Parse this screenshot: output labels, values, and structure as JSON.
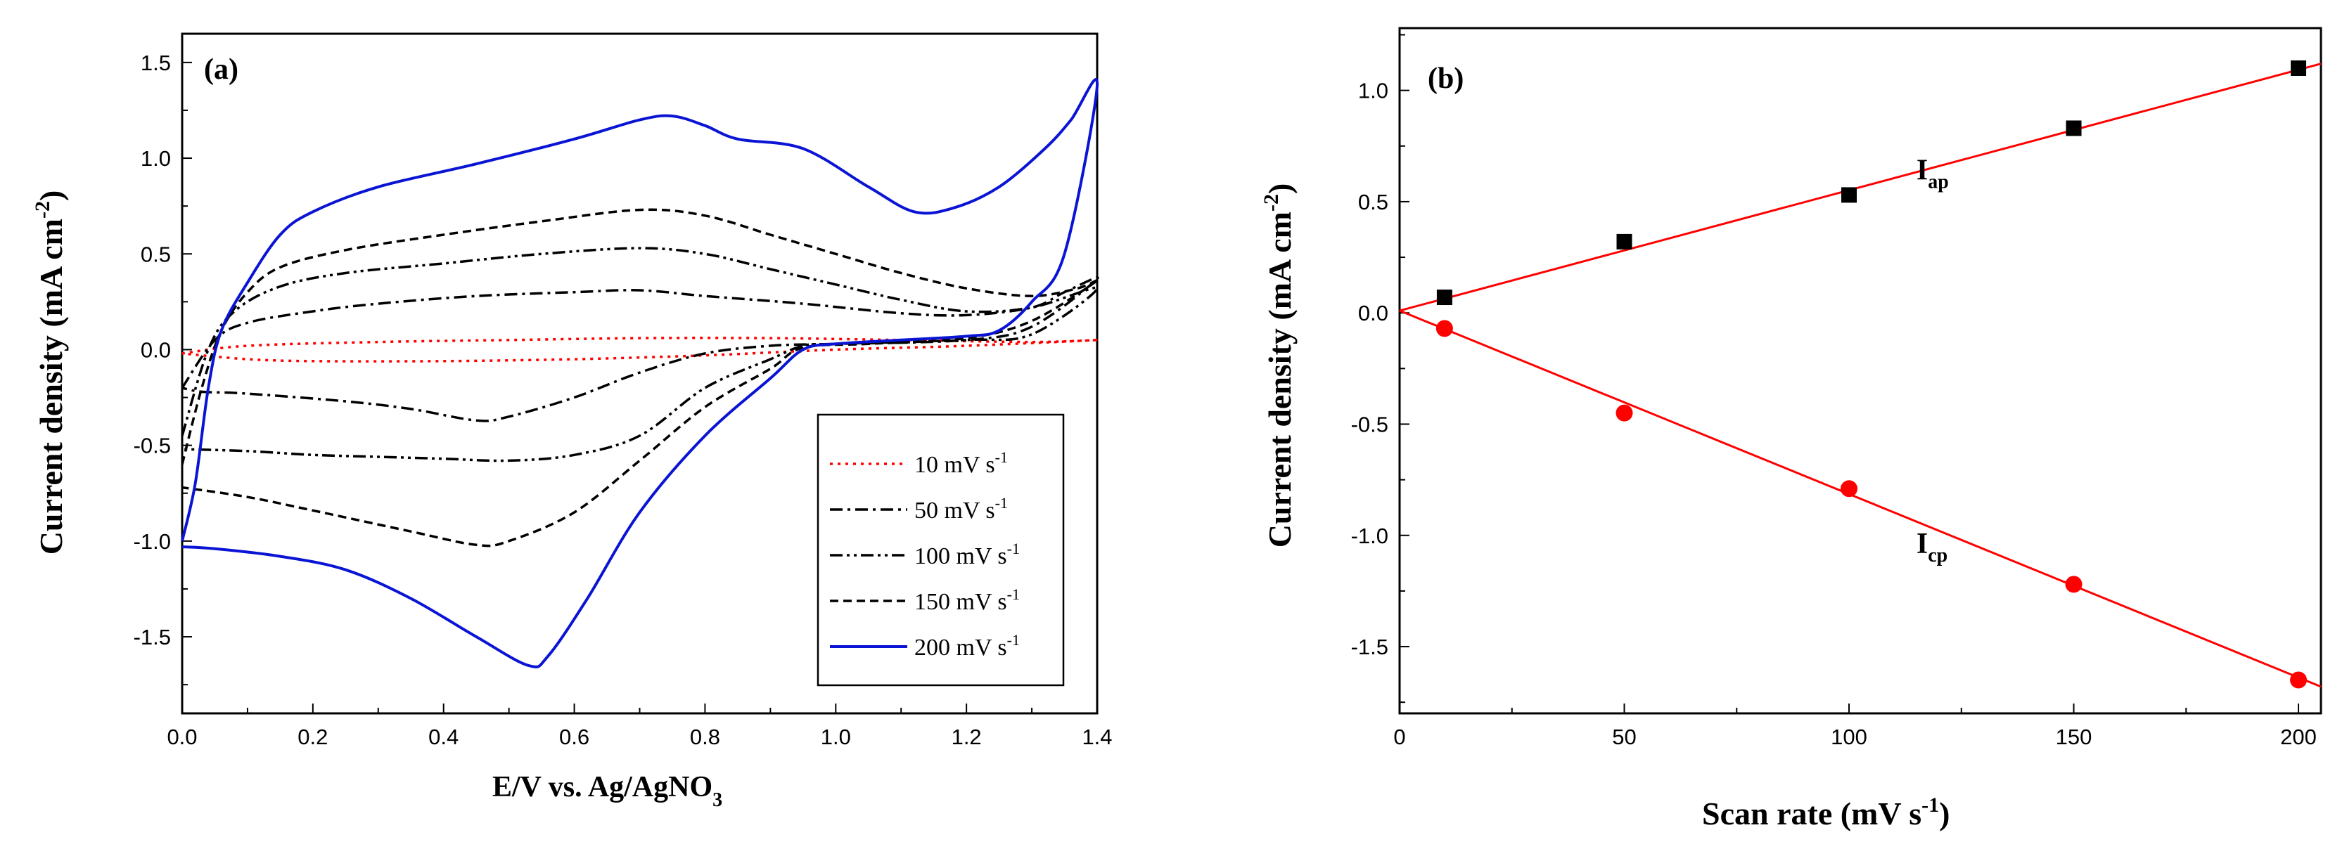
{
  "chart_data": [
    {
      "type": "line",
      "panel_label": "(a)",
      "xlabel": "E/V vs. Ag/AgNO",
      "xlabel_sub": "3",
      "ylabel": "Current density (mA cm",
      "ylabel_sup": "-2",
      "ylabel_close": ")",
      "xlim": [
        0,
        1.4
      ],
      "ylim": [
        -1.9,
        1.65
      ],
      "xticks": [
        "0.0",
        "0.2",
        "0.4",
        "0.6",
        "0.8",
        "1.0",
        "1.2",
        "1.4"
      ],
      "yticks": [
        "-1.5",
        "-1.0",
        "-0.5",
        "0.0",
        "0.5",
        "1.0",
        "1.5"
      ],
      "legend": {
        "position": "bottom-right",
        "unit": "mV s",
        "unit_sup": "-1",
        "entries": [
          "10",
          "50",
          "100",
          "150",
          "200"
        ]
      },
      "series": [
        {
          "name": "10 mV s-1",
          "color": "#ff0000",
          "style": "dotted",
          "anodic": [
            [
              0.0,
              -0.02
            ],
            [
              0.1,
              0.02
            ],
            [
              0.3,
              0.04
            ],
            [
              0.5,
              0.05
            ],
            [
              0.7,
              0.06
            ],
            [
              0.9,
              0.06
            ],
            [
              1.1,
              0.05
            ],
            [
              1.3,
              0.04
            ],
            [
              1.4,
              0.05
            ]
          ],
          "cathodic": [
            [
              1.4,
              0.04
            ],
            [
              1.2,
              0.02
            ],
            [
              1.0,
              0.0
            ],
            [
              0.8,
              -0.03
            ],
            [
              0.6,
              -0.05
            ],
            [
              0.4,
              -0.06
            ],
            [
              0.2,
              -0.06
            ],
            [
              0.1,
              -0.05
            ],
            [
              0.0,
              -0.02
            ]
          ]
        },
        {
          "name": "50 mV s-1",
          "color": "#000000",
          "style": "dashdot",
          "anodic": [
            [
              0.0,
              -0.2
            ],
            [
              0.05,
              0.05
            ],
            [
              0.1,
              0.14
            ],
            [
              0.2,
              0.2
            ],
            [
              0.3,
              0.24
            ],
            [
              0.45,
              0.28
            ],
            [
              0.6,
              0.3
            ],
            [
              0.7,
              0.31
            ],
            [
              0.8,
              0.28
            ],
            [
              0.95,
              0.24
            ],
            [
              1.1,
              0.19
            ],
            [
              1.2,
              0.18
            ],
            [
              1.3,
              0.22
            ],
            [
              1.35,
              0.3
            ],
            [
              1.4,
              0.37
            ]
          ],
          "cathodic": [
            [
              1.4,
              0.3
            ],
            [
              1.3,
              0.12
            ],
            [
              1.2,
              0.05
            ],
            [
              1.0,
              0.03
            ],
            [
              0.9,
              0.02
            ],
            [
              0.8,
              -0.02
            ],
            [
              0.7,
              -0.12
            ],
            [
              0.6,
              -0.25
            ],
            [
              0.5,
              -0.35
            ],
            [
              0.45,
              -0.37
            ],
            [
              0.35,
              -0.31
            ],
            [
              0.25,
              -0.27
            ],
            [
              0.1,
              -0.23
            ],
            [
              0.03,
              -0.22
            ],
            [
              0.0,
              -0.2
            ]
          ]
        },
        {
          "name": "100 mV s-1",
          "color": "#000000",
          "style": "dashdotdot",
          "anodic": [
            [
              0.0,
              -0.45
            ],
            [
              0.04,
              0.0
            ],
            [
              0.08,
              0.2
            ],
            [
              0.15,
              0.33
            ],
            [
              0.25,
              0.4
            ],
            [
              0.4,
              0.45
            ],
            [
              0.55,
              0.5
            ],
            [
              0.7,
              0.53
            ],
            [
              0.8,
              0.5
            ],
            [
              0.9,
              0.42
            ],
            [
              1.0,
              0.34
            ],
            [
              1.1,
              0.26
            ],
            [
              1.2,
              0.2
            ],
            [
              1.3,
              0.22
            ],
            [
              1.4,
              0.32
            ]
          ],
          "cathodic": [
            [
              1.4,
              0.22
            ],
            [
              1.3,
              0.08
            ],
            [
              1.2,
              0.05
            ],
            [
              1.0,
              0.03
            ],
            [
              0.95,
              0.02
            ],
            [
              0.9,
              -0.05
            ],
            [
              0.8,
              -0.2
            ],
            [
              0.7,
              -0.45
            ],
            [
              0.6,
              -0.55
            ],
            [
              0.5,
              -0.58
            ],
            [
              0.4,
              -0.57
            ],
            [
              0.3,
              -0.56
            ],
            [
              0.2,
              -0.55
            ],
            [
              0.1,
              -0.53
            ],
            [
              0.0,
              -0.52
            ]
          ]
        },
        {
          "name": "150 mV s-1",
          "color": "#000000",
          "style": "dashed",
          "anodic": [
            [
              0.0,
              -0.6
            ],
            [
              0.03,
              -0.2
            ],
            [
              0.06,
              0.1
            ],
            [
              0.1,
              0.3
            ],
            [
              0.15,
              0.43
            ],
            [
              0.25,
              0.52
            ],
            [
              0.4,
              0.6
            ],
            [
              0.55,
              0.67
            ],
            [
              0.7,
              0.73
            ],
            [
              0.8,
              0.7
            ],
            [
              0.9,
              0.6
            ],
            [
              1.0,
              0.5
            ],
            [
              1.1,
              0.4
            ],
            [
              1.2,
              0.32
            ],
            [
              1.3,
              0.28
            ],
            [
              1.37,
              0.32
            ],
            [
              1.4,
              0.36
            ]
          ],
          "cathodic": [
            [
              1.4,
              0.3
            ],
            [
              1.3,
              0.15
            ],
            [
              1.2,
              0.06
            ],
            [
              1.05,
              0.03
            ],
            [
              0.95,
              0.01
            ],
            [
              0.9,
              -0.1
            ],
            [
              0.8,
              -0.3
            ],
            [
              0.7,
              -0.58
            ],
            [
              0.6,
              -0.85
            ],
            [
              0.5,
              -1.0
            ],
            [
              0.45,
              -1.02
            ],
            [
              0.35,
              -0.95
            ],
            [
              0.2,
              -0.84
            ],
            [
              0.1,
              -0.77
            ],
            [
              0.0,
              -0.72
            ]
          ]
        },
        {
          "name": "200 mV s-1",
          "color": "#0a14d4",
          "style": "solid",
          "anodic": [
            [
              0.0,
              -1.0
            ],
            [
              0.02,
              -0.7
            ],
            [
              0.04,
              -0.2
            ],
            [
              0.06,
              0.1
            ],
            [
              0.1,
              0.35
            ],
            [
              0.15,
              0.6
            ],
            [
              0.2,
              0.72
            ],
            [
              0.3,
              0.85
            ],
            [
              0.45,
              0.97
            ],
            [
              0.6,
              1.1
            ],
            [
              0.7,
              1.2
            ],
            [
              0.75,
              1.22
            ],
            [
              0.8,
              1.17
            ],
            [
              0.85,
              1.1
            ],
            [
              0.95,
              1.05
            ],
            [
              1.05,
              0.85
            ],
            [
              1.12,
              0.72
            ],
            [
              1.18,
              0.74
            ],
            [
              1.25,
              0.85
            ],
            [
              1.32,
              1.05
            ],
            [
              1.36,
              1.2
            ],
            [
              1.4,
              1.38
            ]
          ],
          "cathodic": [
            [
              1.4,
              1.3
            ],
            [
              1.35,
              0.5
            ],
            [
              1.3,
              0.25
            ],
            [
              1.25,
              0.1
            ],
            [
              1.2,
              0.07
            ],
            [
              1.1,
              0.05
            ],
            [
              1.0,
              0.03
            ],
            [
              0.95,
              0.0
            ],
            [
              0.9,
              -0.15
            ],
            [
              0.8,
              -0.45
            ],
            [
              0.7,
              -0.85
            ],
            [
              0.62,
              -1.3
            ],
            [
              0.56,
              -1.6
            ],
            [
              0.53,
              -1.65
            ],
            [
              0.45,
              -1.5
            ],
            [
              0.35,
              -1.3
            ],
            [
              0.25,
              -1.15
            ],
            [
              0.15,
              -1.08
            ],
            [
              0.05,
              -1.04
            ],
            [
              0.0,
              -1.03
            ]
          ]
        }
      ]
    },
    {
      "type": "scatter",
      "panel_label": "(b)",
      "xlabel": "Scan rate (mV s",
      "xlabel_sup": "-1",
      "xlabel_close": ")",
      "ylabel": "Current density (mA cm",
      "ylabel_sup": "-2",
      "ylabel_close": ")",
      "xlim": [
        0,
        205
      ],
      "ylim": [
        -1.8,
        1.28
      ],
      "xticks": [
        "0",
        "50",
        "100",
        "150",
        "200"
      ],
      "yticks": [
        "-1.5",
        "-1.0",
        "-0.5",
        "0.0",
        "0.5",
        "1.0"
      ],
      "series": [
        {
          "name": "I",
          "name_sub": "ap",
          "color": "#000000",
          "marker": "square",
          "x": [
            10,
            50,
            100,
            150,
            200
          ],
          "y": [
            0.07,
            0.32,
            0.53,
            0.83,
            1.1
          ],
          "fit": {
            "x": [
              0,
              205
            ],
            "y": [
              0.01,
              1.12
            ],
            "color": "#ff0000"
          },
          "label_at": [
            115,
            0.6
          ]
        },
        {
          "name": "I",
          "name_sub": "cp",
          "color": "#ff0000",
          "marker": "circle",
          "x": [
            10,
            50,
            100,
            150,
            200
          ],
          "y": [
            -0.07,
            -0.45,
            -0.79,
            -1.22,
            -1.65
          ],
          "fit": {
            "x": [
              0,
              205
            ],
            "y": [
              0.01,
              -1.68
            ],
            "color": "#ff0000"
          },
          "label_at": [
            115,
            -1.08
          ]
        }
      ]
    }
  ]
}
